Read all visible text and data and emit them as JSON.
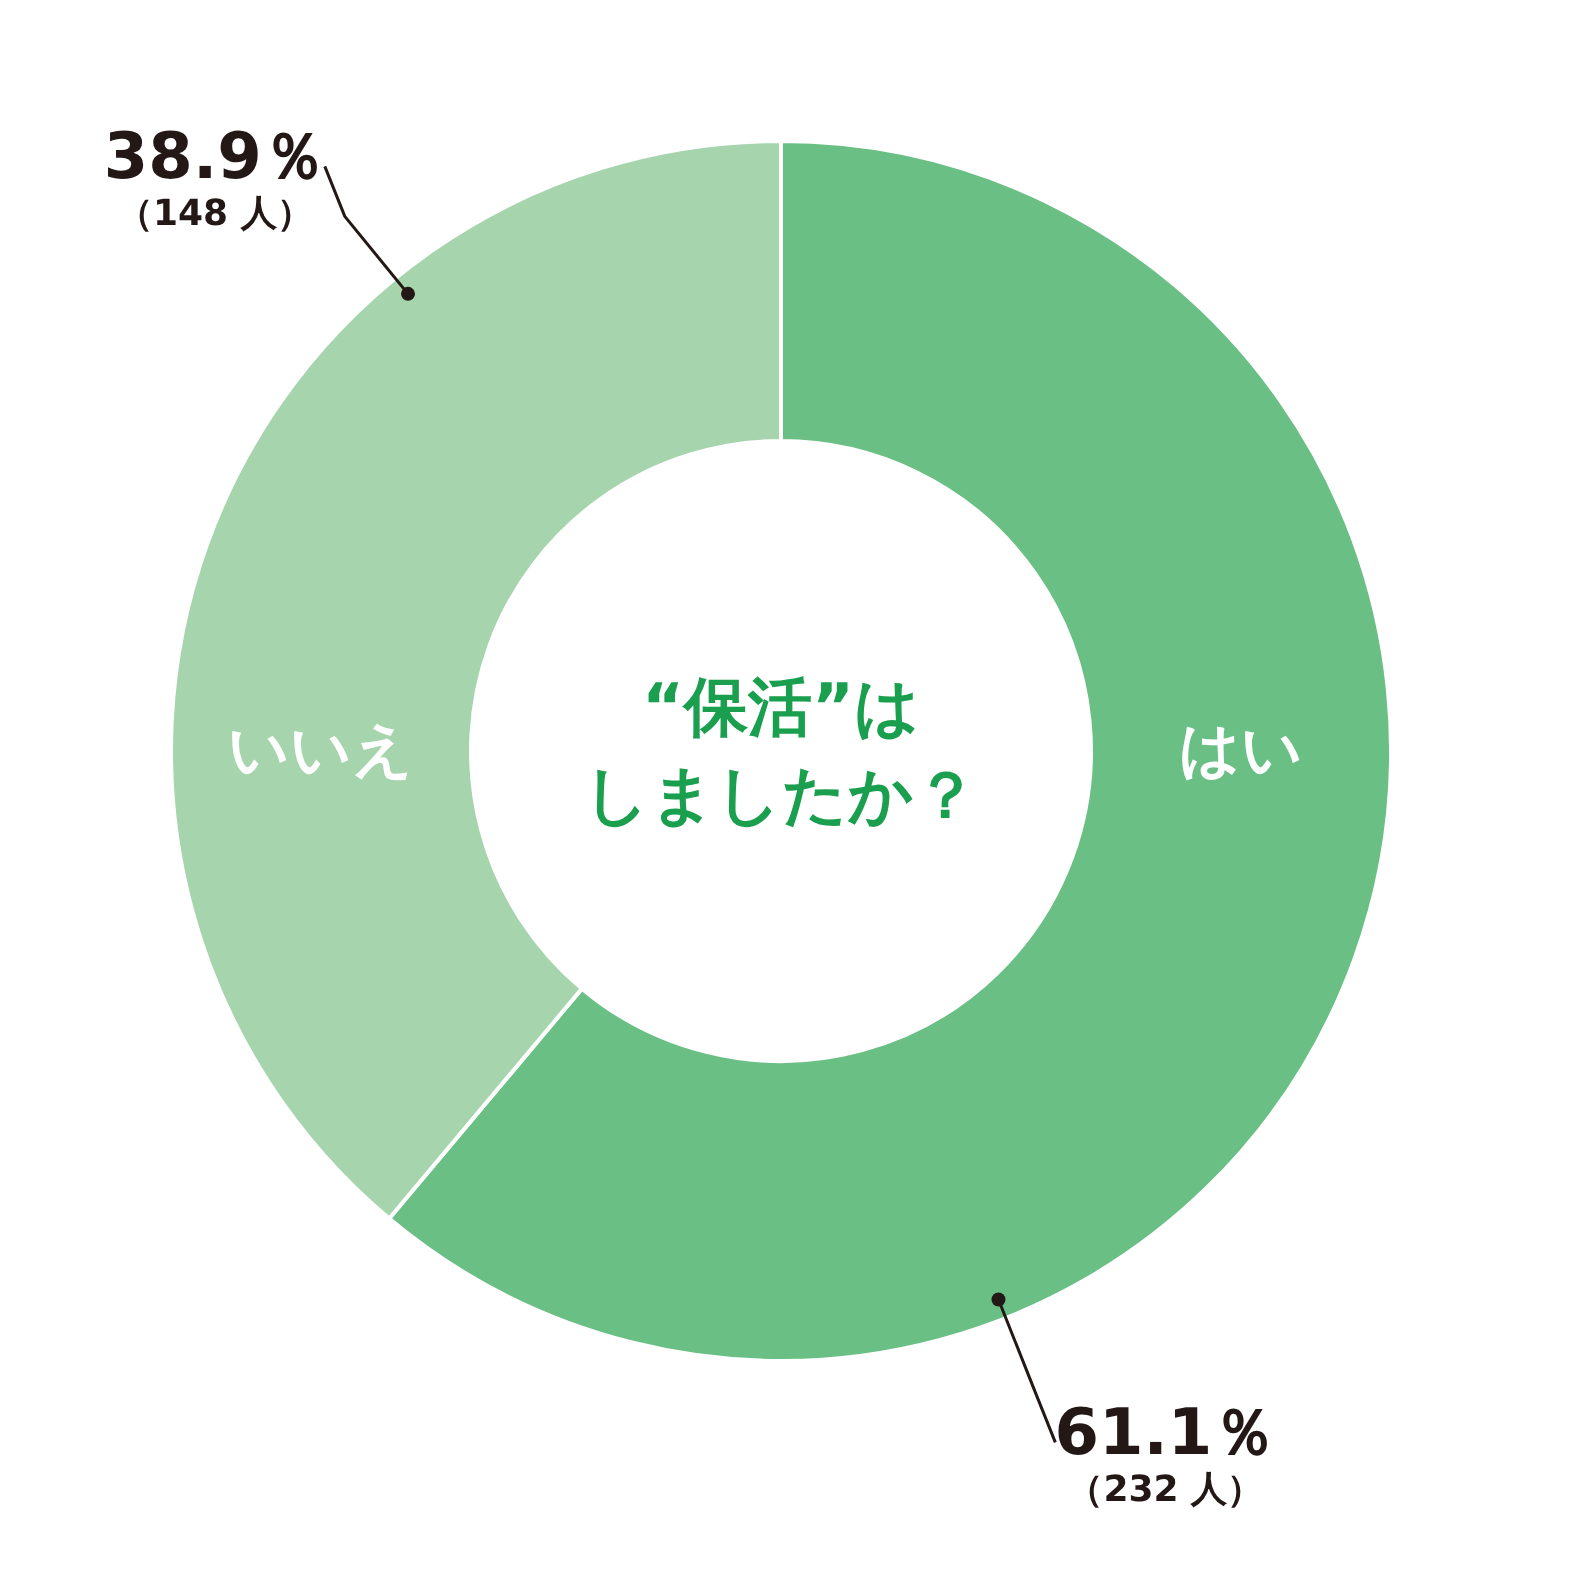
{
  "chart_data": {
    "type": "donut",
    "title": "“保活”はしましたか？",
    "categories": [
      "はい",
      "いいえ"
    ],
    "values": [
      61.1,
      38.9
    ],
    "colors": [
      "#6abf85",
      "#a5d4ad"
    ],
    "value_labels": [
      "61.1％（232 人）",
      "38.9％（148 人）"
    ]
  }
}
